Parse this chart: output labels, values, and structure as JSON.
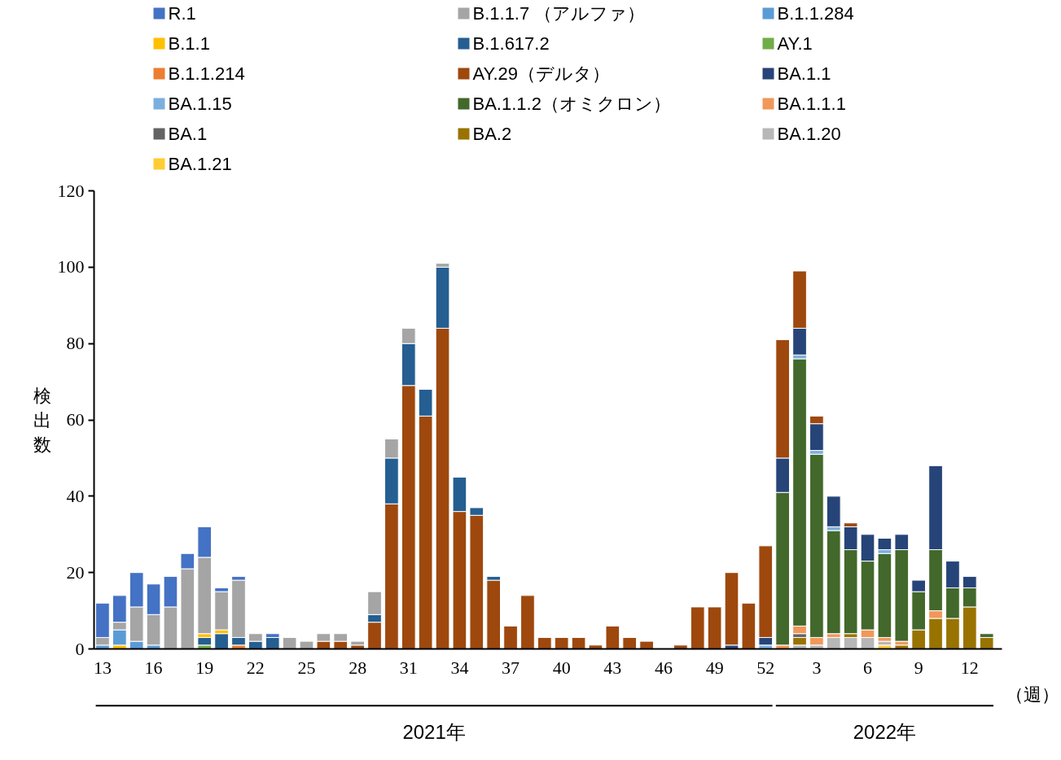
{
  "chart_data": {
    "type": "bar",
    "stacked": true,
    "ylabel": "検出数",
    "categories": [
      "13",
      null,
      null,
      "16",
      null,
      null,
      "19",
      null,
      null,
      "22",
      null,
      null,
      "25",
      null,
      null,
      "28",
      null,
      null,
      "31",
      null,
      null,
      "34",
      null,
      null,
      "37",
      null,
      null,
      "40",
      null,
      null,
      "43",
      null,
      null,
      "46",
      null,
      null,
      "49",
      null,
      null,
      "52",
      null,
      null,
      "3",
      null,
      null,
      "6",
      null,
      null,
      "9",
      null,
      null,
      "12",
      null
    ],
    "ylim": [
      0,
      120
    ],
    "yticks": [
      0,
      20,
      40,
      60,
      80,
      100,
      120
    ],
    "grid": false,
    "legend": "top",
    "annotations": [
      "（週）",
      "2021年",
      "2022年"
    ],
    "series": [
      {
        "name": "BA.1.21",
        "color": "#ffcd33",
        "values": [
          0,
          0,
          0,
          0,
          0,
          0,
          0,
          0,
          0,
          0,
          0,
          0,
          0,
          0,
          0,
          0,
          0,
          0,
          0,
          0,
          0,
          0,
          0,
          0,
          0,
          0,
          0,
          0,
          0,
          0,
          0,
          0,
          0,
          0,
          0,
          0,
          0,
          0,
          0,
          0,
          0,
          0,
          0,
          0,
          0,
          0,
          1,
          0,
          0,
          0,
          0,
          0,
          0
        ]
      },
      {
        "name": "BA.1.20",
        "color": "#b7b7b7",
        "values": [
          0,
          0,
          0,
          0,
          0,
          0,
          0,
          0,
          0,
          0,
          0,
          0,
          0,
          0,
          0,
          0,
          0,
          0,
          0,
          0,
          0,
          0,
          0,
          0,
          0,
          0,
          0,
          0,
          0,
          0,
          0,
          0,
          0,
          0,
          0,
          0,
          0,
          0,
          0,
          0,
          0,
          1,
          1,
          3,
          3,
          3,
          1,
          0,
          0,
          0,
          0,
          0,
          0
        ]
      },
      {
        "name": "BA.2",
        "color": "#997300",
        "values": [
          0,
          0,
          0,
          0,
          0,
          0,
          0,
          0,
          0,
          0,
          0,
          0,
          0,
          0,
          0,
          0,
          0,
          0,
          0,
          0,
          0,
          0,
          0,
          0,
          0,
          0,
          0,
          0,
          0,
          0,
          0,
          0,
          0,
          0,
          0,
          0,
          0,
          0,
          0,
          0,
          0,
          2,
          0,
          0,
          1,
          0,
          0,
          1,
          5,
          8,
          8,
          11,
          3
        ]
      },
      {
        "name": "BA.1",
        "color": "#636363",
        "values": [
          0,
          0,
          0,
          0,
          0,
          0,
          0,
          0,
          0,
          0,
          0,
          0,
          0,
          0,
          0,
          0,
          0,
          0,
          0,
          0,
          0,
          0,
          0,
          0,
          0,
          0,
          0,
          0,
          0,
          0,
          0,
          0,
          0,
          0,
          0,
          0,
          0,
          0,
          0,
          0,
          0,
          1,
          0,
          0,
          0,
          0,
          0,
          0,
          0,
          0,
          0,
          0,
          0
        ]
      },
      {
        "name": "BA.1.1.1",
        "color": "#f1975a",
        "values": [
          0,
          0,
          0,
          0,
          0,
          0,
          0,
          0,
          0,
          0,
          0,
          0,
          0,
          0,
          0,
          0,
          0,
          0,
          0,
          0,
          0,
          0,
          0,
          0,
          0,
          0,
          0,
          0,
          0,
          0,
          0,
          0,
          0,
          0,
          0,
          0,
          0,
          0,
          0,
          0,
          1,
          2,
          2,
          1,
          0,
          2,
          1,
          1,
          0,
          2,
          0,
          0,
          0
        ]
      },
      {
        "name": "BA.1.1.2（オミクロン）",
        "color": "#43682b",
        "values": [
          0,
          0,
          0,
          0,
          0,
          0,
          0,
          0,
          0,
          0,
          0,
          0,
          0,
          0,
          0,
          0,
          0,
          0,
          0,
          0,
          0,
          0,
          0,
          0,
          0,
          0,
          0,
          0,
          0,
          0,
          0,
          0,
          0,
          0,
          0,
          0,
          0,
          0,
          0,
          0,
          40,
          70,
          48,
          27,
          22,
          18,
          22,
          24,
          10,
          16,
          8,
          5,
          1
        ]
      },
      {
        "name": "BA.1.15",
        "color": "#7cafdd",
        "values": [
          0,
          0,
          0,
          0,
          0,
          0,
          0,
          0,
          0,
          0,
          0,
          0,
          0,
          0,
          0,
          0,
          0,
          0,
          0,
          0,
          0,
          0,
          0,
          0,
          0,
          0,
          0,
          0,
          0,
          0,
          0,
          0,
          0,
          0,
          0,
          0,
          0,
          0,
          0,
          1,
          0,
          1,
          1,
          1,
          0,
          0,
          1,
          0,
          0,
          0,
          0,
          0,
          0
        ]
      },
      {
        "name": "BA.1.1",
        "color": "#264478",
        "values": [
          0,
          0,
          0,
          0,
          0,
          0,
          0,
          0,
          0,
          0,
          0,
          0,
          0,
          0,
          0,
          0,
          0,
          0,
          0,
          0,
          0,
          0,
          0,
          0,
          0,
          0,
          0,
          0,
          0,
          0,
          0,
          0,
          0,
          0,
          0,
          0,
          0,
          1,
          0,
          2,
          9,
          7,
          7,
          8,
          6,
          7,
          3,
          4,
          3,
          22,
          7,
          3,
          0
        ]
      },
      {
        "name": "AY.29（デルタ）",
        "color": "#9e480e",
        "values": [
          0,
          0,
          0,
          0,
          0,
          0,
          0,
          0,
          0,
          0,
          0,
          0,
          0,
          2,
          2,
          1,
          7,
          38,
          69,
          61,
          84,
          36,
          35,
          18,
          6,
          14,
          3,
          3,
          3,
          1,
          6,
          3,
          2,
          0,
          1,
          11,
          11,
          19,
          12,
          24,
          31,
          15,
          2,
          0,
          1,
          0,
          0,
          0,
          0,
          0,
          0,
          0,
          0
        ]
      },
      {
        "name": "B.1.1.214",
        "color": "#ed7d31",
        "values": [
          0,
          0,
          0,
          0,
          0,
          0,
          0,
          0,
          1,
          0,
          0,
          0,
          0,
          0,
          0,
          0,
          0,
          0,
          0,
          0,
          0,
          0,
          0,
          0,
          0,
          0,
          0,
          0,
          0,
          0,
          0,
          0,
          0,
          0,
          0,
          0,
          0,
          0,
          0,
          0,
          0,
          0,
          0,
          0,
          0,
          0,
          0,
          0,
          0,
          0,
          0,
          0,
          0
        ]
      },
      {
        "name": "AY.1",
        "color": "#70ad47",
        "values": [
          0,
          0,
          0,
          0,
          0,
          0,
          1,
          0,
          0,
          0,
          0,
          0,
          0,
          0,
          0,
          0,
          0,
          0,
          0,
          0,
          0,
          0,
          0,
          0,
          0,
          0,
          0,
          0,
          0,
          0,
          0,
          0,
          0,
          0,
          0,
          0,
          0,
          0,
          0,
          0,
          0,
          0,
          0,
          0,
          0,
          0,
          0,
          0,
          0,
          0,
          0,
          0,
          0
        ]
      },
      {
        "name": "B.1.617.2",
        "color": "#255e91",
        "values": [
          0,
          0,
          0,
          0,
          0,
          0,
          2,
          4,
          2,
          2,
          3,
          0,
          0,
          0,
          0,
          0,
          2,
          12,
          11,
          7,
          16,
          9,
          2,
          1,
          0,
          0,
          0,
          0,
          0,
          0,
          0,
          0,
          0,
          0,
          0,
          0,
          0,
          0,
          0,
          0,
          0,
          0,
          0,
          0,
          0,
          0,
          0,
          0,
          0,
          0,
          0,
          0,
          0
        ]
      },
      {
        "name": "B.1.1",
        "color": "#ffc000",
        "values": [
          0,
          1,
          0,
          0,
          0,
          0,
          1,
          1,
          0,
          0,
          0,
          0,
          0,
          0,
          0,
          0,
          0,
          0,
          0,
          0,
          0,
          0,
          0,
          0,
          0,
          0,
          0,
          0,
          0,
          0,
          0,
          0,
          0,
          0,
          0,
          0,
          0,
          0,
          0,
          0,
          0,
          0,
          0,
          0,
          0,
          0,
          0,
          0,
          0,
          0,
          0,
          0,
          0
        ]
      },
      {
        "name": "B.1.1.284",
        "color": "#5b9bd5",
        "values": [
          1,
          4,
          2,
          1,
          0,
          0,
          0,
          0,
          0,
          0,
          0,
          0,
          0,
          0,
          0,
          0,
          0,
          0,
          0,
          0,
          0,
          0,
          0,
          0,
          0,
          0,
          0,
          0,
          0,
          0,
          0,
          0,
          0,
          0,
          0,
          0,
          0,
          0,
          0,
          0,
          0,
          0,
          0,
          0,
          0,
          0,
          0,
          0,
          0,
          0,
          0,
          0,
          0
        ]
      },
      {
        "name": "B.1.1.7 （アルファ）",
        "color": "#a5a5a5",
        "values": [
          2,
          2,
          9,
          8,
          11,
          21,
          20,
          10,
          15,
          2,
          0,
          3,
          2,
          2,
          2,
          1,
          6,
          5,
          4,
          0,
          1,
          0,
          0,
          0,
          0,
          0,
          0,
          0,
          0,
          0,
          0,
          0,
          0,
          0,
          0,
          0,
          0,
          0,
          0,
          0,
          0,
          0,
          0,
          0,
          0,
          0,
          0,
          0,
          0,
          0,
          0,
          0,
          0
        ]
      },
      {
        "name": "R.1",
        "color": "#4472c4",
        "values": [
          9,
          7,
          9,
          8,
          8,
          4,
          8,
          1,
          1,
          0,
          1,
          0,
          0,
          0,
          0,
          0,
          0,
          0,
          0,
          0,
          0,
          0,
          0,
          0,
          0,
          0,
          0,
          0,
          0,
          0,
          0,
          0,
          0,
          0,
          0,
          0,
          0,
          0,
          0,
          0,
          0,
          0,
          0,
          0,
          0,
          0,
          0,
          0,
          0,
          0,
          0,
          0,
          0
        ]
      }
    ]
  }
}
